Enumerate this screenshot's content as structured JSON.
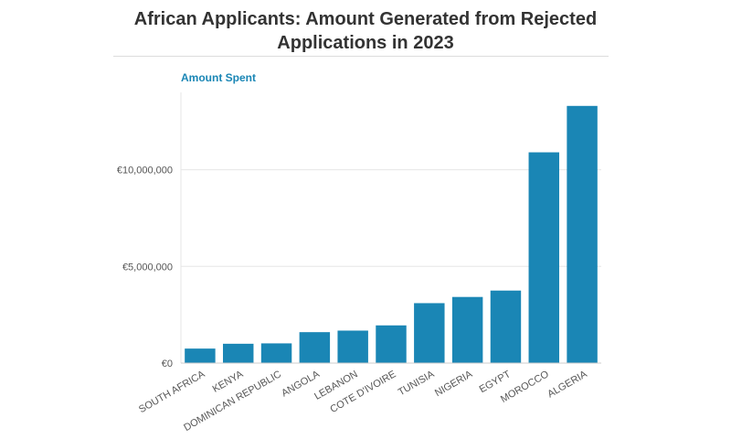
{
  "chart_data": {
    "type": "bar",
    "title": "African Applicants: Amount Generated from Rejected Applications in 2023",
    "title_lines": [
      "African Applicants: Amount Generated from Rejected",
      "Applications in 2023"
    ],
    "ylabel": "Amount Spent",
    "xlabel": "",
    "categories": [
      "SOUTH AFRICA",
      "KENYA",
      "DOMINICAN REPUBLIC",
      "ANGOLA",
      "LEBANON",
      "COTE D'IVOIRE",
      "TUNISIA",
      "NIGERIA",
      "EGYPT",
      "MOROCCO",
      "ALGERIA"
    ],
    "values": [
      750000,
      1000000,
      1020000,
      1600000,
      1680000,
      1950000,
      3100000,
      3420000,
      3750000,
      10900000,
      13300000
    ],
    "ylim": [
      0,
      14000000
    ],
    "yticks": [
      0,
      5000000,
      10000000
    ],
    "ytick_labels": [
      "€0",
      "€5,000,000",
      "€10,000,000"
    ],
    "grid": true,
    "bar_color": "#1a86b5"
  }
}
